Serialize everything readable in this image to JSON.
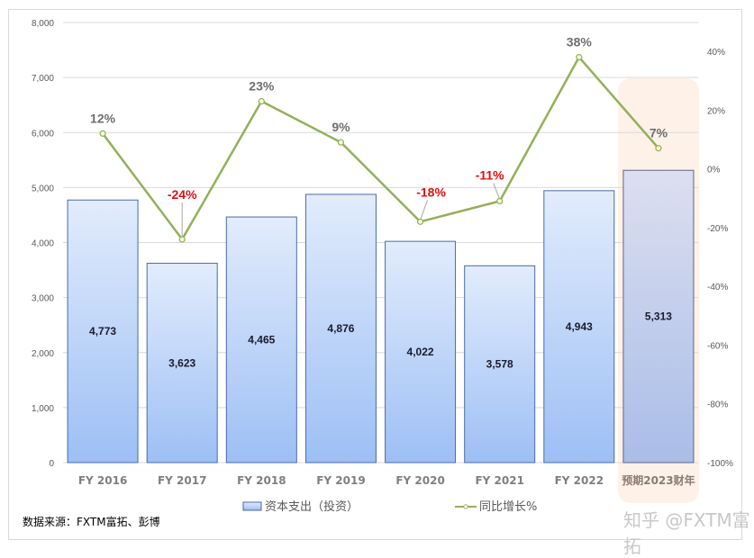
{
  "chart_data": {
    "type": "bar+line",
    "title": "",
    "categories": [
      "FY 2016",
      "FY 2017",
      "FY 2018",
      "FY 2019",
      "FY 2020",
      "FY 2021",
      "FY 2022",
      "预期2023财年"
    ],
    "series": [
      {
        "name": "资本支出（投资）",
        "type": "bar",
        "axis": "left",
        "values": [
          4773,
          3623,
          4465,
          4876,
          4022,
          3578,
          4943,
          5313
        ],
        "labels": [
          "4,773",
          "3,623",
          "4,465",
          "4,876",
          "4,022",
          "3,578",
          "4,943",
          "5,313"
        ]
      },
      {
        "name": "同比增长%",
        "type": "line",
        "axis": "right",
        "values": [
          12,
          -24,
          23,
          9,
          -18,
          -11,
          38,
          7
        ],
        "labels": [
          "12%",
          "-24%",
          "23%",
          "9%",
          "-18%",
          "-11%",
          "38%",
          "7%"
        ]
      }
    ],
    "left_axis": {
      "min": 0,
      "max": 8000,
      "step": 1000,
      "ticks": [
        "0",
        "1,000",
        "2,000",
        "3,000",
        "4,000",
        "5,000",
        "6,000",
        "7,000",
        "8,000"
      ]
    },
    "right_axis": {
      "min": -100,
      "max": 40,
      "step": 20,
      "ticks": [
        "-100%",
        "-80%",
        "-60%",
        "-40%",
        "-20%",
        "0%",
        "20%",
        "40%"
      ]
    },
    "grid": true,
    "legend_position": "bottom",
    "highlighted_category": "预期2023财年",
    "colors": {
      "bar_top": "#e2ecfc",
      "bar_bottom": "#9dbff5",
      "bar_border": "#4a6aa5",
      "forecast_bar_top": "#dcdff0",
      "forecast_bar_bottom": "#a9bde8",
      "forecast_border": "#5b6584",
      "highlight_bg": "#fdf1e8",
      "line": "#93b05a",
      "positive_label": "#6e6e6e",
      "negative_label": "#e01010",
      "grid": "#d9d9d9"
    }
  },
  "source_note": "数据来源：FXTM富拓、彭博",
  "watermark": "知乎 @FXTM富拓"
}
